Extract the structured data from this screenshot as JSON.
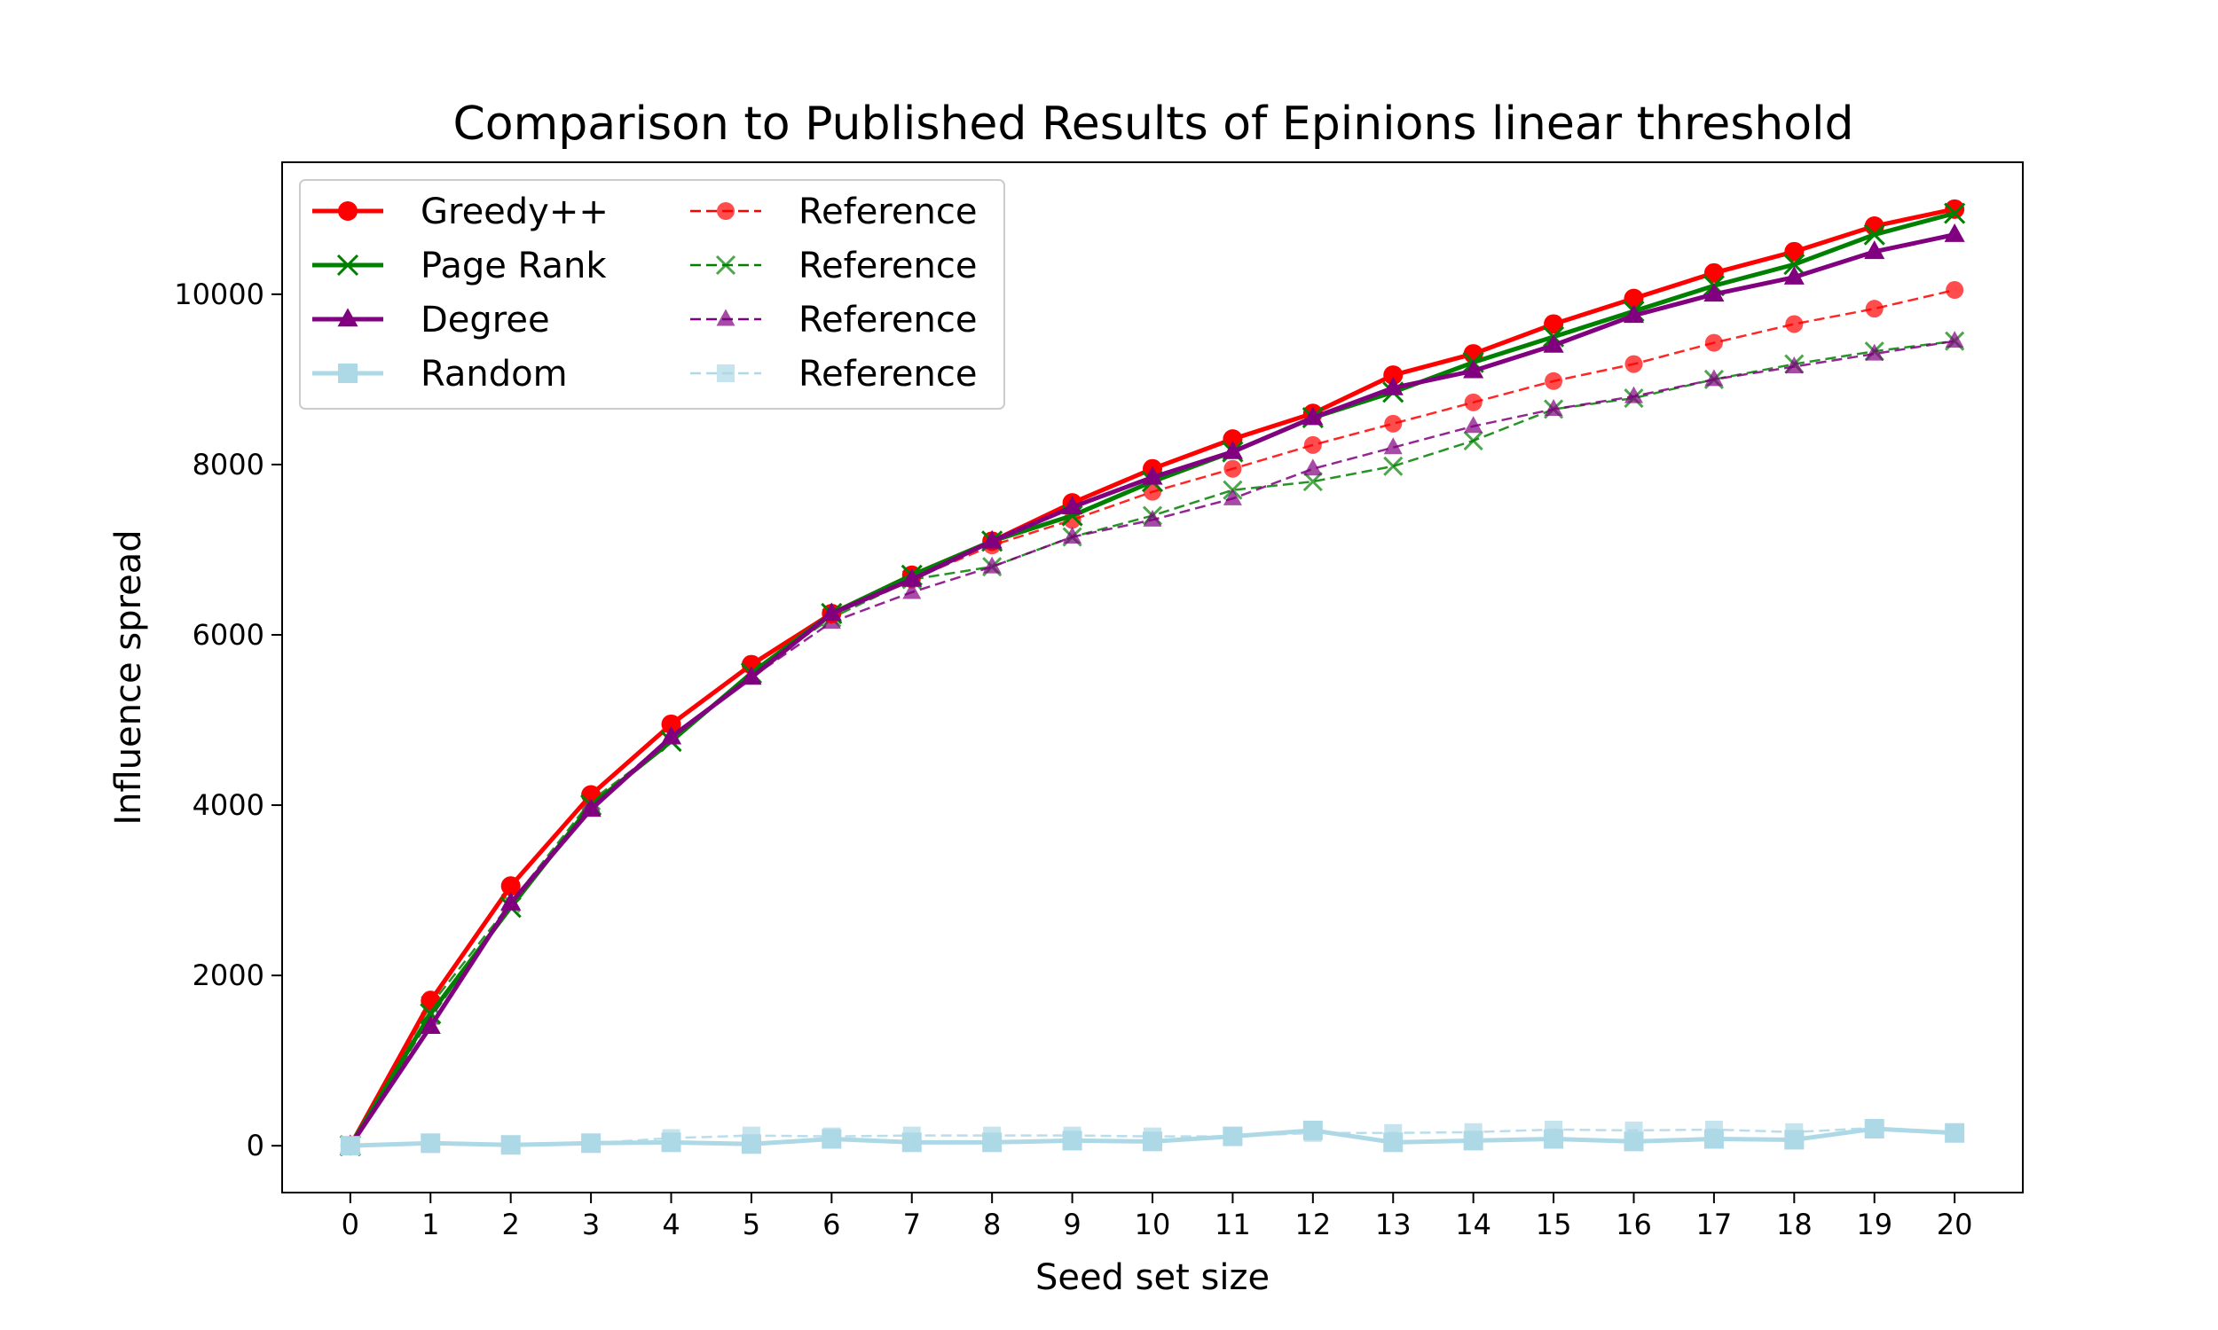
{
  "chart_data": {
    "type": "line",
    "title": "Comparison to Published Results of Epinions linear threshold",
    "xlabel": "Seed set size",
    "ylabel": "Influence spread",
    "xlim": [
      -0.85,
      20.85
    ],
    "ylim": [
      -550,
      11550
    ],
    "x": [
      0,
      1,
      2,
      3,
      4,
      5,
      6,
      7,
      8,
      9,
      10,
      11,
      12,
      13,
      14,
      15,
      16,
      17,
      18,
      19,
      20
    ],
    "xticks": [
      "0",
      "1",
      "2",
      "3",
      "4",
      "5",
      "6",
      "7",
      "8",
      "9",
      "10",
      "11",
      "12",
      "13",
      "14",
      "15",
      "16",
      "17",
      "18",
      "19",
      "20"
    ],
    "yticks": [
      0,
      2000,
      4000,
      6000,
      8000,
      10000
    ],
    "ytick_labels": [
      "0",
      "2000",
      "4000",
      "6000",
      "8000",
      "10000"
    ],
    "grid": false,
    "legend_position": "top-left",
    "series": [
      {
        "name": "Greedy++",
        "color": "#ff0000",
        "marker": "circle",
        "dash": "solid",
        "values": [
          0,
          1700,
          3050,
          4120,
          4950,
          5650,
          6250,
          6700,
          7100,
          7550,
          7950,
          8300,
          8600,
          9050,
          9300,
          9650,
          9950,
          10250,
          10500,
          10800,
          11000
        ]
      },
      {
        "name": "Page Rank",
        "color": "#008000",
        "marker": "x",
        "dash": "solid",
        "values": [
          0,
          1550,
          2800,
          4000,
          4750,
          5550,
          6250,
          6700,
          7100,
          7400,
          7800,
          8150,
          8550,
          8850,
          9200,
          9500,
          9800,
          10100,
          10350,
          10700,
          10950
        ]
      },
      {
        "name": "Degree",
        "color": "#800080",
        "marker": "triangle",
        "dash": "solid",
        "values": [
          0,
          1400,
          2850,
          3950,
          4800,
          5500,
          6250,
          6650,
          7100,
          7500,
          7850,
          8150,
          8550,
          8900,
          9100,
          9400,
          9750,
          10000,
          10200,
          10500,
          10700
        ]
      },
      {
        "name": "Random",
        "color": "#add8e6",
        "marker": "square",
        "dash": "solid",
        "values": [
          0,
          30,
          10,
          30,
          40,
          20,
          80,
          40,
          40,
          60,
          50,
          110,
          180,
          40,
          60,
          80,
          50,
          80,
          70,
          200,
          150
        ]
      },
      {
        "name": "Reference",
        "color": "#ff0000",
        "marker": "circle",
        "dash": "dashed",
        "values": [
          0,
          1720,
          3060,
          4130,
          4950,
          5650,
          6250,
          6650,
          7050,
          7350,
          7680,
          7950,
          8230,
          8480,
          8730,
          8980,
          9180,
          9430,
          9650,
          9830,
          10050
        ]
      },
      {
        "name": "Reference",
        "color": "#008000",
        "marker": "x",
        "dash": "dashed",
        "values": [
          0,
          1650,
          2850,
          4050,
          4750,
          5550,
          6200,
          6650,
          6800,
          7150,
          7400,
          7700,
          7800,
          7980,
          8280,
          8650,
          8780,
          9000,
          9180,
          9330,
          9450
        ]
      },
      {
        "name": "Reference",
        "color": "#800080",
        "marker": "triangle",
        "dash": "dashed",
        "values": [
          0,
          1500,
          2850,
          4000,
          4800,
          5500,
          6150,
          6500,
          6800,
          7150,
          7350,
          7600,
          7950,
          8200,
          8450,
          8650,
          8800,
          9000,
          9150,
          9300,
          9450
        ]
      },
      {
        "name": "Reference",
        "color": "#add8e6",
        "marker": "square",
        "dash": "dashed",
        "values": [
          0,
          20,
          10,
          30,
          90,
          120,
          110,
          120,
          120,
          120,
          110,
          110,
          150,
          150,
          160,
          190,
          180,
          190,
          160,
          210,
          160
        ]
      }
    ]
  }
}
